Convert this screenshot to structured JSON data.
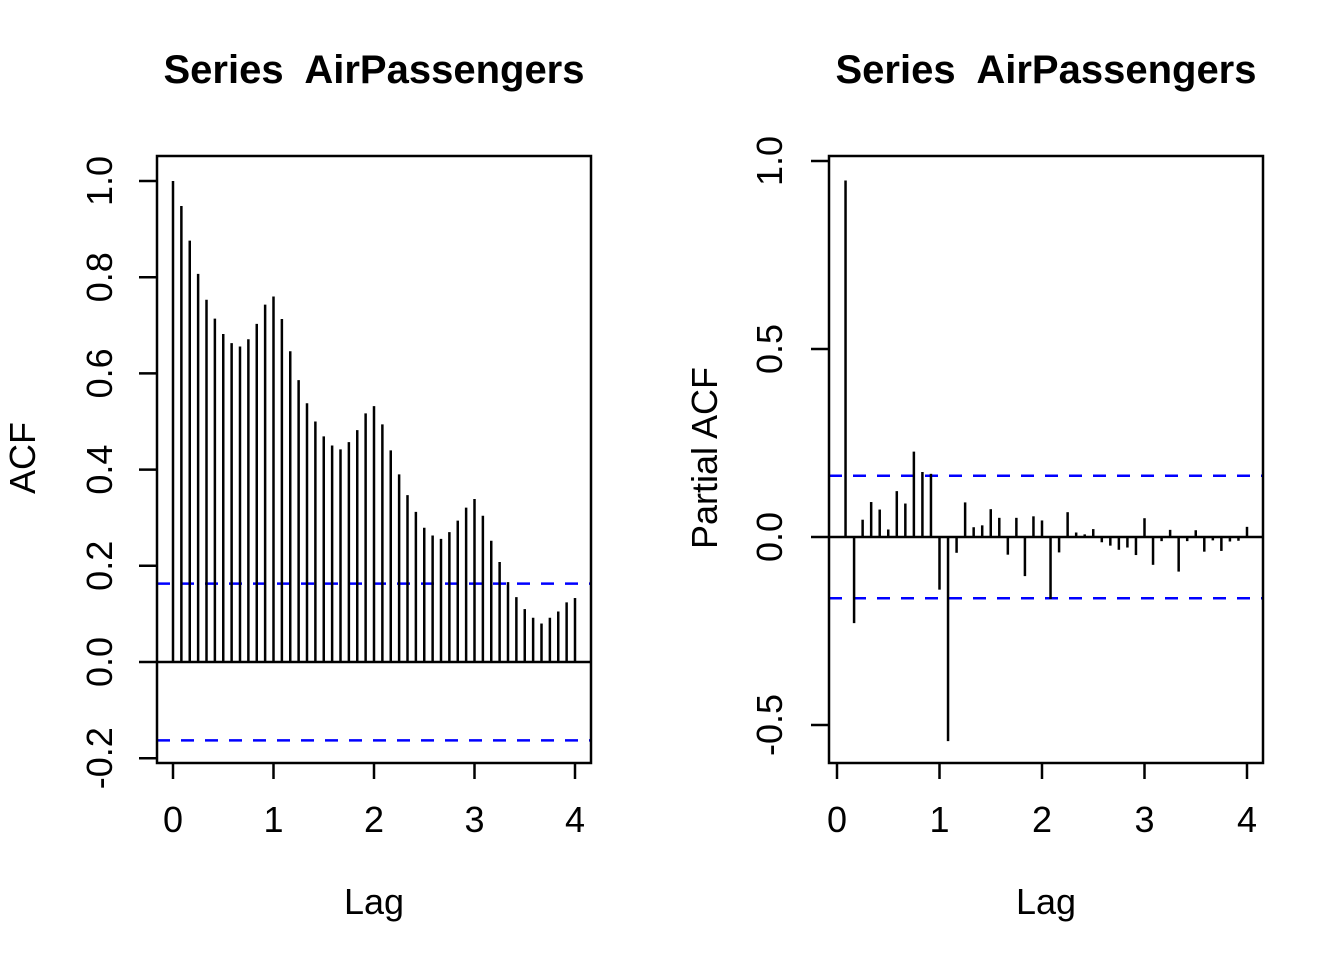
{
  "page": {
    "background": "#ffffff",
    "foreground": "#000000"
  },
  "chart_data": [
    {
      "id": "acf",
      "type": "bar",
      "title": "Series  AirPassengers",
      "xlabel": "Lag",
      "ylabel": "ACF",
      "x_unit": "years (monthly lags, 12 lags per year)",
      "start_month": 0,
      "months_per_year": 12,
      "xlim": [
        0,
        4
      ],
      "ylim": [
        -0.21,
        1.05
      ],
      "grid": false,
      "xticks": [
        {
          "v": 0,
          "label": "0"
        },
        {
          "v": 1,
          "label": "1"
        },
        {
          "v": 2,
          "label": "2"
        },
        {
          "v": 3,
          "label": "3"
        },
        {
          "v": 4,
          "label": "4"
        }
      ],
      "yticks": [
        {
          "v": -0.2,
          "label": "-0.2"
        },
        {
          "v": 0.0,
          "label": "0.0"
        },
        {
          "v": 0.2,
          "label": "0.2"
        },
        {
          "v": 0.4,
          "label": "0.4"
        },
        {
          "v": 0.6,
          "label": "0.6"
        },
        {
          "v": 0.8,
          "label": "0.8"
        },
        {
          "v": 1.0,
          "label": "1.0"
        }
      ],
      "confidence_bounds": {
        "upper": 0.163,
        "lower": -0.163
      },
      "bar_color": "#000000",
      "conf_color": "#0000ff",
      "values": [
        1.0,
        0.948,
        0.876,
        0.807,
        0.753,
        0.714,
        0.682,
        0.663,
        0.656,
        0.671,
        0.703,
        0.743,
        0.76,
        0.713,
        0.646,
        0.586,
        0.538,
        0.5,
        0.469,
        0.45,
        0.442,
        0.457,
        0.482,
        0.517,
        0.532,
        0.494,
        0.44,
        0.39,
        0.347,
        0.312,
        0.279,
        0.263,
        0.256,
        0.27,
        0.294,
        0.321,
        0.339,
        0.304,
        0.252,
        0.208,
        0.166,
        0.135,
        0.11,
        0.092,
        0.08,
        0.092,
        0.105,
        0.124,
        0.133
      ]
    },
    {
      "id": "pacf",
      "type": "bar",
      "title": "Series  AirPassengers",
      "xlabel": "Lag",
      "ylabel": "Partial ACF",
      "x_unit": "years (monthly lags, 12 lags per year)",
      "start_month": 1,
      "months_per_year": 12,
      "xlim": [
        0,
        4
      ],
      "ylim": [
        -0.6,
        1.01
      ],
      "grid": false,
      "xticks": [
        {
          "v": 0,
          "label": "0"
        },
        {
          "v": 1,
          "label": "1"
        },
        {
          "v": 2,
          "label": "2"
        },
        {
          "v": 3,
          "label": "3"
        },
        {
          "v": 4,
          "label": "4"
        }
      ],
      "yticks": [
        {
          "v": -0.5,
          "label": "-0.5"
        },
        {
          "v": 0.0,
          "label": "0.0"
        },
        {
          "v": 0.5,
          "label": "0.5"
        },
        {
          "v": 1.0,
          "label": "1.0"
        }
      ],
      "confidence_bounds": {
        "upper": 0.163,
        "lower": -0.163
      },
      "bar_color": "#000000",
      "conf_color": "#0000ff",
      "values": [
        0.948,
        -0.229,
        0.046,
        0.093,
        0.073,
        0.02,
        0.122,
        0.089,
        0.227,
        0.173,
        0.168,
        -0.14,
        -0.543,
        -0.042,
        0.092,
        0.026,
        0.031,
        0.074,
        0.051,
        -0.047,
        0.051,
        -0.104,
        0.055,
        0.044,
        -0.165,
        -0.041,
        0.066,
        0.012,
        0.007,
        0.021,
        -0.014,
        -0.023,
        -0.034,
        -0.028,
        -0.048,
        0.05,
        -0.074,
        -0.011,
        0.019,
        -0.092,
        -0.011,
        0.018,
        -0.039,
        -0.009,
        -0.037,
        -0.012,
        -0.01,
        0.027
      ]
    }
  ]
}
